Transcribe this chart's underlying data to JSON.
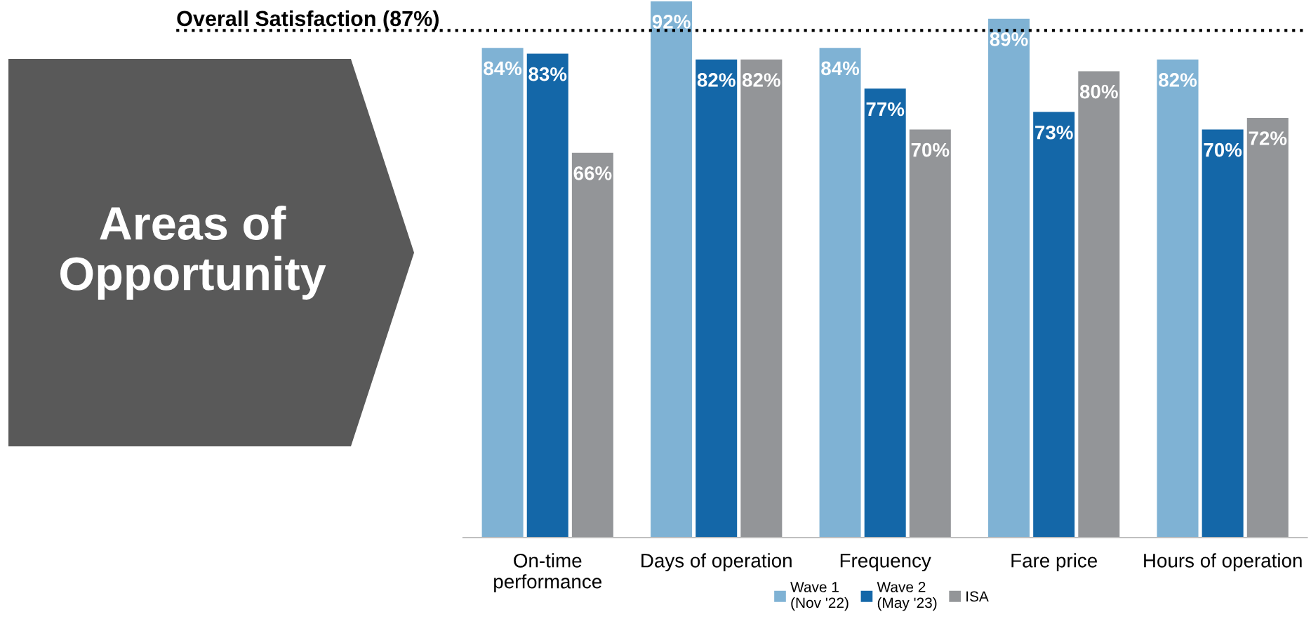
{
  "chart_data": {
    "type": "bar",
    "categories": [
      "On-time\nperformance",
      "Days of operation",
      "Frequency",
      "Fare price",
      "Hours of operation"
    ],
    "series": [
      {
        "name": "Wave 1\n(Nov '22)",
        "color": "#7fb2d4",
        "values": [
          84,
          92,
          84,
          89,
          82
        ],
        "value_labels": [
          "84%",
          "92%",
          "84%",
          "89%",
          "82%"
        ]
      },
      {
        "name": "Wave 2\n(May '23)",
        "color": "#1467a8",
        "values": [
          83,
          82,
          77,
          73,
          70
        ],
        "value_labels": [
          "83%",
          "82%",
          "77%",
          "73%",
          "70%"
        ]
      },
      {
        "name": "ISA",
        "color": "#939598",
        "values": [
          66,
          82,
          70,
          80,
          72
        ],
        "value_labels": [
          "66%",
          "82%",
          "70%",
          "80%",
          "72%"
        ]
      }
    ],
    "ylim": [
      0,
      92
    ],
    "ref_lines": [
      {
        "axis": "y",
        "value": 87,
        "label": "Overall Satisfaction (87%)",
        "color": "#000000",
        "line_style": "dotted"
      }
    ],
    "annotations": [
      "Areas of\nOpportunity"
    ],
    "legend": "bottom",
    "grid": false
  }
}
